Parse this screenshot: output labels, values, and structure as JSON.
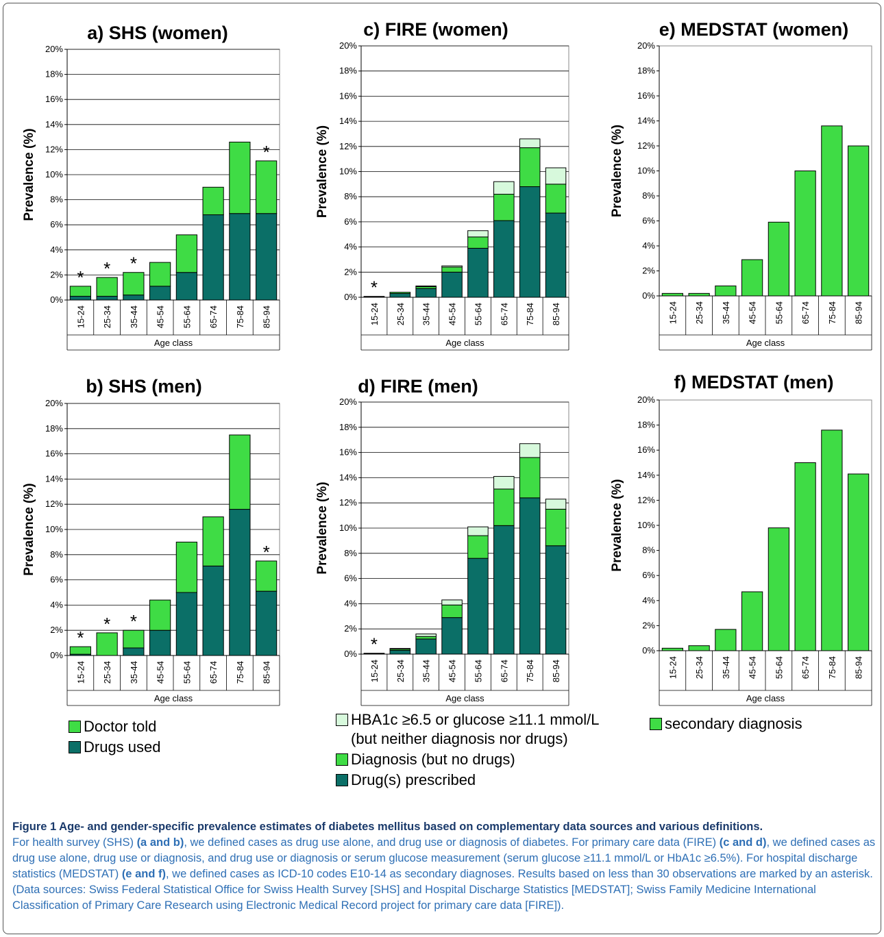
{
  "colors": {
    "doctor_told": "#3fdc45",
    "drugs": "#0b6f67",
    "hba1c": "#d7f9dc",
    "secondary": "#3fdc45",
    "border": "#555555",
    "caption": "#2e6fb5",
    "caption_title": "#1a3a6b"
  },
  "chart_data": [
    {
      "id": "a",
      "type": "bar",
      "stacked": true,
      "title": "a) SHS (women)",
      "xlabel": "Age class",
      "ylabel": "Prevalence (%)",
      "ylim": [
        0,
        20
      ],
      "yticks": [
        "0%",
        "2%",
        "4%",
        "6%",
        "8%",
        "10%",
        "12%",
        "14%",
        "16%",
        "18%",
        "20%"
      ],
      "grid": true,
      "categories": [
        "15-24",
        "25-34",
        "35-44",
        "45-54",
        "55-64",
        "65-74",
        "75-84",
        "85-94"
      ],
      "series": [
        {
          "name": "Drugs used",
          "color": "#0b6f67",
          "values": [
            0.3,
            0.3,
            0.4,
            1.1,
            2.2,
            6.8,
            6.9,
            6.9
          ]
        },
        {
          "name": "Doctor told",
          "color": "#3fdc45",
          "values": [
            0.8,
            1.5,
            1.8,
            1.9,
            3.0,
            2.2,
            5.7,
            4.2
          ]
        }
      ],
      "asterisks": [
        true,
        true,
        true,
        false,
        false,
        false,
        false,
        true
      ]
    },
    {
      "id": "b",
      "type": "bar",
      "stacked": true,
      "title": "b) SHS (men)",
      "xlabel": "Age class",
      "ylabel": "Prevalence (%)",
      "ylim": [
        0,
        20
      ],
      "yticks": [
        "0%",
        "2%",
        "4%",
        "6%",
        "8%",
        "10%",
        "12%",
        "14%",
        "16%",
        "18%",
        "20%"
      ],
      "grid": true,
      "categories": [
        "15-24",
        "25-34",
        "35-44",
        "45-54",
        "55-64",
        "65-74",
        "75-84",
        "85-94"
      ],
      "series": [
        {
          "name": "Drugs used",
          "color": "#0b6f67",
          "values": [
            0.1,
            0.0,
            0.6,
            2.0,
            5.0,
            7.1,
            11.6,
            5.1
          ]
        },
        {
          "name": "Doctor told",
          "color": "#3fdc45",
          "values": [
            0.6,
            1.8,
            1.4,
            2.4,
            4.0,
            3.9,
            5.9,
            2.4
          ]
        }
      ],
      "asterisks": [
        true,
        true,
        true,
        false,
        false,
        false,
        false,
        true
      ]
    },
    {
      "id": "c",
      "type": "bar",
      "stacked": true,
      "title": "c) FIRE (women)",
      "xlabel": "Age class",
      "ylabel": "Prevalence (%)",
      "ylim": [
        0,
        20
      ],
      "yticks": [
        "0%",
        "2%",
        "4%",
        "6%",
        "8%",
        "10%",
        "12%",
        "14%",
        "16%",
        "18%",
        "20%"
      ],
      "grid": true,
      "categories": [
        "15-24",
        "25-34",
        "35-44",
        "45-54",
        "55-64",
        "65-74",
        "75-84",
        "85-94"
      ],
      "series": [
        {
          "name": "Drug(s) prescribed",
          "color": "#0b6f67",
          "values": [
            0.05,
            0.3,
            0.7,
            2.0,
            3.9,
            6.1,
            8.8,
            6.7
          ]
        },
        {
          "name": "Diagnosis (but no drugs)",
          "color": "#3fdc45",
          "values": [
            0.02,
            0.1,
            0.15,
            0.4,
            0.9,
            2.1,
            3.1,
            2.3
          ]
        },
        {
          "name": "HBA1c ≥6.5 or glucose ≥11.1 mmol/L (but neither diagnosis nor drugs)",
          "color": "#d7f9dc",
          "values": [
            0.0,
            0.0,
            0.05,
            0.1,
            0.5,
            1.0,
            0.7,
            1.3
          ]
        }
      ],
      "asterisks": [
        true,
        false,
        false,
        false,
        false,
        false,
        false,
        false
      ]
    },
    {
      "id": "d",
      "type": "bar",
      "stacked": true,
      "title": "d) FIRE (men)",
      "xlabel": "Age class",
      "ylabel": "Prevalence (%)",
      "ylim": [
        0,
        20
      ],
      "yticks": [
        "0%",
        "2%",
        "4%",
        "6%",
        "8%",
        "10%",
        "12%",
        "14%",
        "16%",
        "18%",
        "20%"
      ],
      "grid": true,
      "categories": [
        "15-24",
        "25-34",
        "35-44",
        "45-54",
        "55-64",
        "65-74",
        "75-84",
        "85-94"
      ],
      "series": [
        {
          "name": "Drug(s) prescribed",
          "color": "#0b6f67",
          "values": [
            0.05,
            0.3,
            1.2,
            2.9,
            7.6,
            10.2,
            12.4,
            8.6
          ]
        },
        {
          "name": "Diagnosis (but no drugs)",
          "color": "#3fdc45",
          "values": [
            0.02,
            0.1,
            0.2,
            1.0,
            1.8,
            2.9,
            3.2,
            2.9
          ]
        },
        {
          "name": "HBA1c ≥6.5 or glucose ≥11.1 mmol/L (but neither diagnosis nor drugs)",
          "color": "#d7f9dc",
          "values": [
            0.0,
            0.05,
            0.2,
            0.4,
            0.7,
            1.0,
            1.1,
            0.8
          ]
        }
      ],
      "asterisks": [
        true,
        false,
        false,
        false,
        false,
        false,
        false,
        false
      ]
    },
    {
      "id": "e",
      "type": "bar",
      "stacked": false,
      "title": "e) MEDSTAT (women)",
      "xlabel": "Age class",
      "ylabel": "Prevalence (%)",
      "ylim": [
        0,
        20
      ],
      "yticks": [
        "0%",
        "2%",
        "4%",
        "6%",
        "8%",
        "10%",
        "12%",
        "14%",
        "16%",
        "18%",
        "20%"
      ],
      "grid": false,
      "categories": [
        "15-24",
        "25-34",
        "35-44",
        "45-54",
        "55-64",
        "65-74",
        "75-84",
        "85-94"
      ],
      "series": [
        {
          "name": "secondary diagnosis",
          "color": "#3fdc45",
          "values": [
            0.2,
            0.2,
            0.8,
            2.9,
            5.9,
            10.0,
            13.6,
            12.0
          ]
        }
      ],
      "asterisks": [
        false,
        false,
        false,
        false,
        false,
        false,
        false,
        false
      ]
    },
    {
      "id": "f",
      "type": "bar",
      "stacked": false,
      "title": "f) MEDSTAT (men)",
      "xlabel": "Age class",
      "ylabel": "Prevalence (%)",
      "ylim": [
        0,
        20
      ],
      "yticks": [
        "0%",
        "2%",
        "4%",
        "6%",
        "8%",
        "10%",
        "12%",
        "14%",
        "16%",
        "18%",
        "20%"
      ],
      "grid": false,
      "categories": [
        "15-24",
        "25-34",
        "35-44",
        "45-54",
        "55-64",
        "65-74",
        "75-84",
        "85-94"
      ],
      "series": [
        {
          "name": "secondary diagnosis",
          "color": "#3fdc45",
          "values": [
            0.2,
            0.4,
            1.7,
            4.7,
            9.8,
            15.0,
            17.6,
            14.1
          ]
        }
      ],
      "asterisks": [
        false,
        false,
        false,
        false,
        false,
        false,
        false,
        false
      ]
    }
  ],
  "legends": {
    "shs": [
      {
        "label": "Doctor told",
        "color": "#3fdc45"
      },
      {
        "label": "Drugs used",
        "color": "#0b6f67"
      }
    ],
    "fire": [
      {
        "label": "HBA1c ≥6.5 or glucose ≥11.1 mmol/L\n(but neither diagnosis nor drugs)",
        "color": "#d7f9dc"
      },
      {
        "label": "Diagnosis (but no drugs)",
        "color": "#3fdc45"
      },
      {
        "label": "Drug(s) prescribed",
        "color": "#0b6f67"
      }
    ],
    "medstat": [
      {
        "label": "secondary diagnosis",
        "color": "#3fdc45"
      }
    ]
  },
  "caption": {
    "title": "Figure 1 Age- and gender-specific prevalence estimates of diabetes mellitus based on complementary data sources and various definitions.",
    "p1": "For health survey (SHS) ",
    "b1": "(a and b)",
    "p2": ", we defined cases as drug use alone, and drug use or diagnosis of diabetes. For primary care data (FIRE) ",
    "b2": "(c and d)",
    "p3": ", we defined cases as drug use alone, drug use or diagnosis, and drug use or diagnosis or serum glucose measurement (serum glucose ≥11.1 mmol/L or HbA1c ≥6.5%). For hospital discharge statistics (MEDSTAT) ",
    "b3": "(e and f)",
    "p4": ", we defined cases as ICD-10 codes E10-14 as secondary diagnoses. Results based on less than 30 observations are marked by an asterisk. (Data sources: Swiss Federal Statistical Office for Swiss Health Survey [SHS] and Hospital Discharge Statistics [MEDSTAT]; Swiss Family Medicine International Classification of Primary Care Research using Electronic Medical Record project for primary care data [FIRE])."
  }
}
